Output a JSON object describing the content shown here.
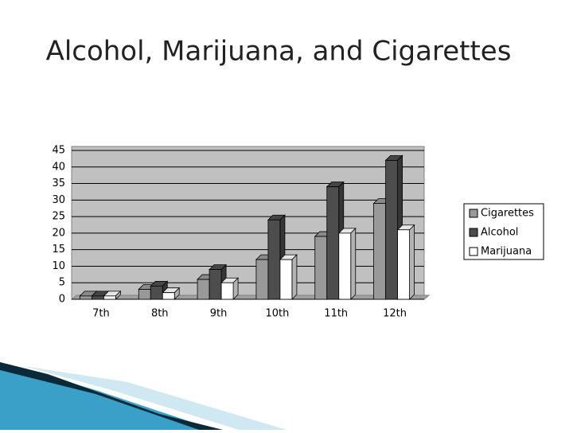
{
  "chart_data": {
    "type": "bar3d",
    "title": "Alcohol, Marijuana, and Cigarettes",
    "categories": [
      "7th",
      "8th",
      "9th",
      "10th",
      "11th",
      "12th"
    ],
    "series": [
      {
        "name": "Cigarettes",
        "color": "#999999",
        "values": [
          1,
          3,
          6,
          12,
          19,
          29
        ]
      },
      {
        "name": "Alcohol",
        "color": "#4d4d4d",
        "values": [
          1,
          4,
          9,
          24,
          34,
          42
        ]
      },
      {
        "name": "Marijuana",
        "color": "#ffffff",
        "values": [
          1,
          2,
          5,
          12,
          20,
          21
        ]
      }
    ],
    "ylim": [
      0,
      45
    ],
    "yticks": [
      0,
      5,
      10,
      15,
      20,
      25,
      30,
      35,
      40,
      45
    ],
    "grid": true,
    "legend": "right"
  }
}
